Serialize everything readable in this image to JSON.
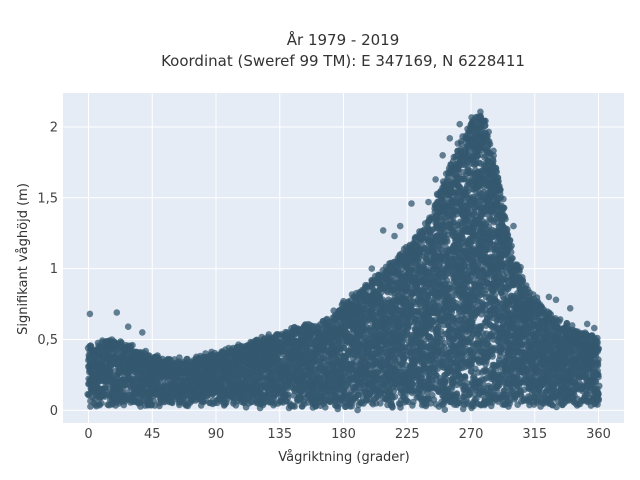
{
  "chart_data": {
    "type": "scatter",
    "title_line1": "År 1979 - 2019",
    "title_line2": "Koordinat (Sweref 99 TM): E 347169, N 6228411",
    "xlabel": "Vågriktning (grader)",
    "ylabel": "Signifikant våghöjd (m)",
    "xlim": [
      -18,
      378
    ],
    "ylim": [
      -0.09,
      2.24
    ],
    "grid": true,
    "marker_color": "#34586f",
    "plot_bg": "#e5ecf6",
    "x_ticks": [
      {
        "value": 0,
        "label": "0"
      },
      {
        "value": 45,
        "label": "45"
      },
      {
        "value": 90,
        "label": "90"
      },
      {
        "value": 135,
        "label": "135"
      },
      {
        "value": 180,
        "label": "180"
      },
      {
        "value": 225,
        "label": "225"
      },
      {
        "value": 270,
        "label": "270"
      },
      {
        "value": 315,
        "label": "315"
      },
      {
        "value": 360,
        "label": "360"
      }
    ],
    "y_ticks": [
      {
        "value": 0,
        "label": "0"
      },
      {
        "value": 0.5,
        "label": "0,5"
      },
      {
        "value": 1,
        "label": "1"
      },
      {
        "value": 1.5,
        "label": "1,5"
      },
      {
        "value": 2,
        "label": "2"
      }
    ],
    "envelope_max": [
      {
        "x": 0,
        "y": 0.45
      },
      {
        "x": 15,
        "y": 0.5
      },
      {
        "x": 30,
        "y": 0.45
      },
      {
        "x": 45,
        "y": 0.38
      },
      {
        "x": 60,
        "y": 0.35
      },
      {
        "x": 75,
        "y": 0.37
      },
      {
        "x": 90,
        "y": 0.4
      },
      {
        "x": 105,
        "y": 0.45
      },
      {
        "x": 120,
        "y": 0.5
      },
      {
        "x": 135,
        "y": 0.55
      },
      {
        "x": 150,
        "y": 0.6
      },
      {
        "x": 165,
        "y": 0.62
      },
      {
        "x": 180,
        "y": 0.75
      },
      {
        "x": 195,
        "y": 0.88
      },
      {
        "x": 210,
        "y": 1.0
      },
      {
        "x": 225,
        "y": 1.15
      },
      {
        "x": 240,
        "y": 1.35
      },
      {
        "x": 250,
        "y": 1.6
      },
      {
        "x": 260,
        "y": 1.85
      },
      {
        "x": 270,
        "y": 2.05
      },
      {
        "x": 276,
        "y": 2.13
      },
      {
        "x": 282,
        "y": 2.0
      },
      {
        "x": 290,
        "y": 1.6
      },
      {
        "x": 300,
        "y": 1.1
      },
      {
        "x": 310,
        "y": 0.85
      },
      {
        "x": 320,
        "y": 0.75
      },
      {
        "x": 330,
        "y": 0.65
      },
      {
        "x": 340,
        "y": 0.6
      },
      {
        "x": 350,
        "y": 0.55
      },
      {
        "x": 360,
        "y": 0.5
      }
    ],
    "envelope_min": [
      {
        "x": 0,
        "y": 0.04
      },
      {
        "x": 90,
        "y": 0.04
      },
      {
        "x": 180,
        "y": 0.02
      },
      {
        "x": 270,
        "y": 0.02
      },
      {
        "x": 360,
        "y": 0.04
      }
    ],
    "outliers": [
      {
        "x": 1,
        "y": 0.68
      },
      {
        "x": 20,
        "y": 0.69
      },
      {
        "x": 28,
        "y": 0.59
      },
      {
        "x": 38,
        "y": 0.55
      },
      {
        "x": 180,
        "y": 0.77
      },
      {
        "x": 200,
        "y": 1.0
      },
      {
        "x": 208,
        "y": 1.27
      },
      {
        "x": 216,
        "y": 1.23
      },
      {
        "x": 220,
        "y": 1.3
      },
      {
        "x": 228,
        "y": 1.46
      },
      {
        "x": 240,
        "y": 1.47
      },
      {
        "x": 245,
        "y": 1.63
      },
      {
        "x": 250,
        "y": 1.8
      },
      {
        "x": 255,
        "y": 1.92
      },
      {
        "x": 262,
        "y": 2.02
      },
      {
        "x": 300,
        "y": 1.3
      },
      {
        "x": 305,
        "y": 1.01
      },
      {
        "x": 340,
        "y": 0.72
      },
      {
        "x": 352,
        "y": 0.61
      },
      {
        "x": 357,
        "y": 0.58
      },
      {
        "x": 325,
        "y": 0.8
      },
      {
        "x": 330,
        "y": 0.78
      }
    ]
  }
}
